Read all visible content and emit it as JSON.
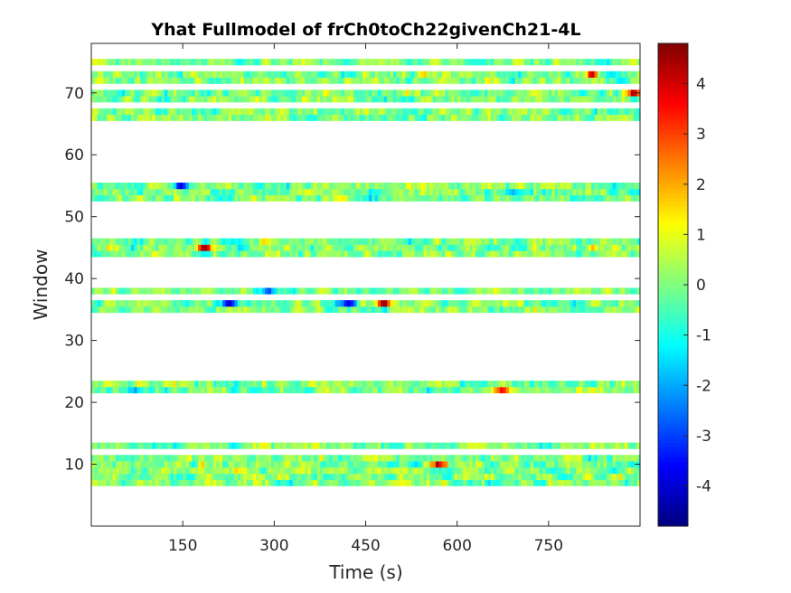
{
  "chart_data": {
    "type": "heatmap",
    "title": "Yhat Fullmodel of frCh0toCh22givenCh21-4L",
    "xlabel": "Time (s)",
    "ylabel": "Window",
    "x_ticks": [
      "150",
      "300",
      "450",
      "600",
      "750"
    ],
    "x_tick_values": [
      150,
      300,
      450,
      600,
      750
    ],
    "y_ticks": [
      "10",
      "20",
      "30",
      "40",
      "50",
      "60",
      "70"
    ],
    "y_tick_values": [
      10,
      20,
      30,
      40,
      50,
      60,
      70
    ],
    "xlim": [
      0,
      900
    ],
    "ylim": [
      0,
      78
    ],
    "colormap": "jet",
    "color_range": [
      -4.8,
      4.8
    ],
    "colorbar_ticks": [
      "4",
      "3",
      "2",
      "1",
      "0",
      "-1",
      "-2",
      "-3",
      "-4"
    ],
    "colorbar_tick_values": [
      4,
      3,
      2,
      1,
      0,
      -1,
      -2,
      -3,
      -4
    ],
    "windows_with_data": [
      7,
      8,
      9,
      10,
      11,
      13,
      22,
      23,
      35,
      36,
      38,
      44,
      45,
      46,
      53,
      54,
      55,
      66,
      67,
      69,
      70,
      72,
      73,
      75
    ],
    "hotspots": [
      {
        "window": 10,
        "time": 570,
        "value": 4.2
      },
      {
        "window": 45,
        "time": 185,
        "value": 4.5
      },
      {
        "window": 36,
        "time": 480,
        "value": 3.8
      },
      {
        "window": 70,
        "time": 890,
        "value": 4.6
      },
      {
        "window": 22,
        "time": 675,
        "value": 3.5
      },
      {
        "window": 73,
        "time": 820,
        "value": 3.6
      },
      {
        "window": 36,
        "time": 420,
        "value": -3.8
      },
      {
        "window": 36,
        "time": 225,
        "value": -3.5
      },
      {
        "window": 55,
        "time": 145,
        "value": -3.2
      },
      {
        "window": 38,
        "time": 290,
        "value": -2.8
      }
    ]
  }
}
